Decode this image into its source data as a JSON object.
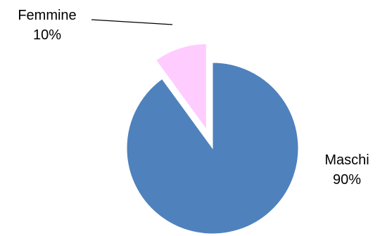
{
  "chart_data": {
    "type": "pie",
    "categories": [
      "Maschi",
      "Femmine"
    ],
    "values": [
      90,
      10
    ],
    "percent_labels": [
      "90%",
      "10%"
    ],
    "colors": [
      "#4F81BD",
      "#FFCCFF"
    ],
    "exploded": "Femmine",
    "legend": "none"
  }
}
